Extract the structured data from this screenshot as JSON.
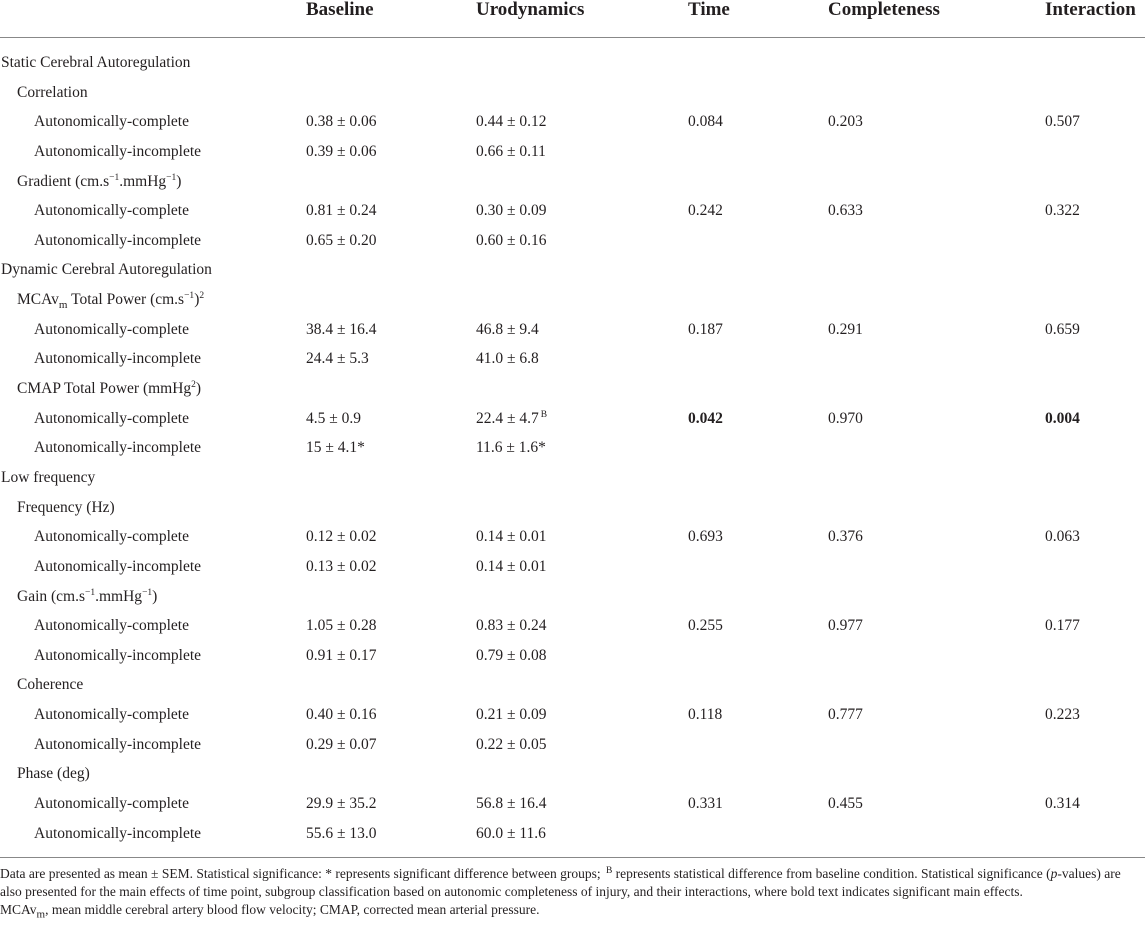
{
  "columns": {
    "baseline": "Baseline",
    "urodynamics": "Urodynamics",
    "time": "Time",
    "completeness": "Completeness",
    "interaction": "Interaction"
  },
  "rows": [
    {
      "level": 0,
      "label": "Static Cerebral Autoregulation"
    },
    {
      "level": 1,
      "label": "Correlation"
    },
    {
      "level": 2,
      "label": "Autonomically-complete",
      "baseline": "0.38 ± 0.06",
      "urodynamics": "0.44 ± 0.12",
      "time": "0.084",
      "completeness": "0.203",
      "interaction": "0.507"
    },
    {
      "level": 2,
      "label": "Autonomically-incomplete",
      "baseline": "0.39 ± 0.06",
      "urodynamics": "0.66 ± 0.11"
    },
    {
      "level": 1,
      "label": "Gradient (cm.s",
      "label_sup": "−1",
      "label_mid": ".mmHg",
      "label_sup2": "−1",
      "label_tail": ")"
    },
    {
      "level": 2,
      "label": "Autonomically-complete",
      "baseline": "0.81 ± 0.24",
      "urodynamics": "0.30 ± 0.09",
      "time": "0.242",
      "completeness": "0.633",
      "interaction": "0.322"
    },
    {
      "level": 2,
      "label": "Autonomically-incomplete",
      "baseline": "0.65 ± 0.20",
      "urodynamics": "0.60 ± 0.16"
    },
    {
      "level": 0,
      "label": "Dynamic Cerebral Autoregulation"
    },
    {
      "level": 1,
      "label": "MCAv",
      "label_sub": "m",
      "label_mid": " Total Power (cm.s",
      "label_sup": "−1",
      "label_tail": ")",
      "label_sup2": "2"
    },
    {
      "level": 2,
      "label": "Autonomically-complete",
      "baseline": "38.4 ± 16.4",
      "urodynamics": "46.8 ± 9.4",
      "time": "0.187",
      "completeness": "0.291",
      "interaction": "0.659"
    },
    {
      "level": 2,
      "label": "Autonomically-incomplete",
      "baseline": "24.4 ± 5.3",
      "urodynamics": "41.0 ± 6.8"
    },
    {
      "level": 1,
      "label": "CMAP Total Power (mmHg",
      "label_sup": "2",
      "label_tail": ")"
    },
    {
      "level": 2,
      "label": "Autonomically-complete",
      "baseline": "4.5 ± 0.9",
      "urodynamics": "22.4 ± 4.7",
      "urodynamics_mark": "B",
      "time": "0.042",
      "time_bold": true,
      "completeness": "0.970",
      "interaction": "0.004",
      "interaction_bold": true
    },
    {
      "level": 2,
      "label": "Autonomically-incomplete",
      "baseline": "15 ± 4.1*",
      "urodynamics": "11.6 ± 1.6*"
    },
    {
      "level": 0,
      "label": "Low frequency"
    },
    {
      "level": 1,
      "label": "Frequency (Hz)"
    },
    {
      "level": 2,
      "label": "Autonomically-complete",
      "baseline": "0.12 ± 0.02",
      "urodynamics": "0.14 ± 0.01",
      "time": "0.693",
      "completeness": "0.376",
      "interaction": "0.063"
    },
    {
      "level": 2,
      "label": "Autonomically-incomplete",
      "baseline": "0.13 ± 0.02",
      "urodynamics": "0.14 ± 0.01"
    },
    {
      "level": 1,
      "label": "Gain (cm.s",
      "label_sup": "−1",
      "label_mid": ".mmHg",
      "label_sup2": "−1",
      "label_tail": ")"
    },
    {
      "level": 2,
      "label": "Autonomically-complete",
      "baseline": "1.05 ± 0.28",
      "urodynamics": "0.83 ± 0.24",
      "time": "0.255",
      "completeness": "0.977",
      "interaction": "0.177"
    },
    {
      "level": 2,
      "label": "Autonomically-incomplete",
      "baseline": "0.91 ± 0.17",
      "urodynamics": "0.79 ± 0.08"
    },
    {
      "level": 1,
      "label": "Coherence"
    },
    {
      "level": 2,
      "label": "Autonomically-complete",
      "baseline": "0.40 ± 0.16",
      "urodynamics": "0.21 ± 0.09",
      "time": "0.118",
      "completeness": "0.777",
      "interaction": "0.223"
    },
    {
      "level": 2,
      "label": "Autonomically-incomplete",
      "baseline": "0.29 ± 0.07",
      "urodynamics": "0.22 ± 0.05"
    },
    {
      "level": 1,
      "label": "Phase (deg)"
    },
    {
      "level": 2,
      "label": "Autonomically-complete",
      "baseline": "29.9 ± 35.2",
      "urodynamics": "56.8 ± 16.4",
      "time": "0.331",
      "completeness": "0.455",
      "interaction": "0.314"
    },
    {
      "level": 2,
      "label": "Autonomically-incomplete",
      "baseline": "55.6 ± 13.0",
      "urodynamics": "60.0 ± 11.6"
    }
  ],
  "footnote": {
    "p1_a": "Data are presented as mean ± SEM. Statistical significance: * represents significant difference between groups; ",
    "p1_b_sup": "B",
    "p1_c": " represents statistical difference from baseline condition. Statistical significance (",
    "p1_d_italic": "p",
    "p1_e": "-values) are also presented for the main effects of time point, subgroup classification based on autonomic completeness of injury, and their interactions, where bold text indicates significant main effects.",
    "p2_a": "MCAv",
    "p2_b_sub": "m",
    "p2_c": ", mean middle cerebral artery blood flow velocity; CMAP, corrected mean arterial pressure."
  }
}
